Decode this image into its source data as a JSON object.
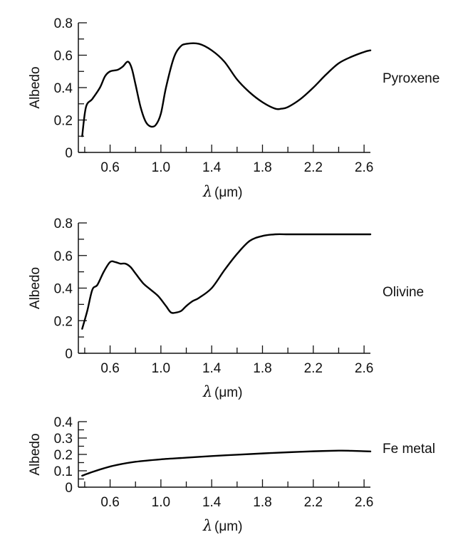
{
  "chart_data": [
    {
      "type": "line",
      "ylabel": "Albedo",
      "xlabel_symbol": "λ",
      "xlabel_unit": "(μm)",
      "series_label": "Pyroxene",
      "xlim": [
        0.35,
        2.65
      ],
      "ylim": [
        0,
        0.8
      ],
      "yticks": [
        "0",
        "0.2",
        "0.4",
        "0.6",
        "0.8"
      ],
      "xticks": [
        "0.6",
        "1.0",
        "1.4",
        "1.8",
        "2.2",
        "2.6"
      ],
      "series": [
        {
          "x": [
            0.38,
            0.41,
            0.46,
            0.52,
            0.56,
            0.6,
            0.66,
            0.7,
            0.74,
            0.77,
            0.8,
            0.84,
            0.88,
            0.92,
            0.96,
            1.0,
            1.04,
            1.1,
            1.15,
            1.2,
            1.3,
            1.4,
            1.5,
            1.6,
            1.7,
            1.8,
            1.9,
            1.95,
            2.0,
            2.1,
            2.2,
            2.3,
            2.4,
            2.5,
            2.6,
            2.65
          ],
          "y": [
            0.1,
            0.28,
            0.33,
            0.4,
            0.47,
            0.5,
            0.51,
            0.53,
            0.56,
            0.52,
            0.42,
            0.28,
            0.19,
            0.16,
            0.17,
            0.24,
            0.4,
            0.58,
            0.65,
            0.67,
            0.67,
            0.63,
            0.56,
            0.45,
            0.37,
            0.31,
            0.27,
            0.27,
            0.28,
            0.33,
            0.4,
            0.48,
            0.55,
            0.59,
            0.62,
            0.63
          ]
        }
      ]
    },
    {
      "type": "line",
      "ylabel": "Albedo",
      "xlabel_symbol": "λ",
      "xlabel_unit": "(μm)",
      "series_label": "Olivine",
      "xlim": [
        0.35,
        2.65
      ],
      "ylim": [
        0,
        0.8
      ],
      "yticks": [
        "0",
        "0.2",
        "0.4",
        "0.6",
        "0.8"
      ],
      "xticks": [
        "0.6",
        "1.0",
        "1.4",
        "1.8",
        "2.2",
        "2.6"
      ],
      "series": [
        {
          "x": [
            0.38,
            0.42,
            0.46,
            0.5,
            0.55,
            0.6,
            0.64,
            0.68,
            0.72,
            0.76,
            0.8,
            0.86,
            0.92,
            0.98,
            1.04,
            1.08,
            1.12,
            1.16,
            1.2,
            1.25,
            1.3,
            1.4,
            1.5,
            1.6,
            1.7,
            1.8,
            1.9,
            2.0,
            2.1,
            2.2,
            2.4,
            2.65
          ],
          "y": [
            0.15,
            0.26,
            0.39,
            0.42,
            0.5,
            0.56,
            0.56,
            0.55,
            0.55,
            0.53,
            0.49,
            0.43,
            0.39,
            0.35,
            0.29,
            0.25,
            0.25,
            0.26,
            0.29,
            0.32,
            0.34,
            0.4,
            0.51,
            0.61,
            0.69,
            0.72,
            0.73,
            0.73,
            0.73,
            0.73,
            0.73,
            0.73
          ]
        }
      ]
    },
    {
      "type": "line",
      "ylabel": "Albedo",
      "xlabel_symbol": "λ",
      "xlabel_unit": "(μm)",
      "series_label": "Fe metal",
      "xlim": [
        0.35,
        2.65
      ],
      "ylim": [
        0,
        0.4
      ],
      "yticks": [
        "0",
        "0.1",
        "0.2",
        "0.3",
        "0.4"
      ],
      "xticks": [
        "0.6",
        "1.0",
        "1.4",
        "1.8",
        "2.2",
        "2.6"
      ],
      "series": [
        {
          "x": [
            0.38,
            0.45,
            0.55,
            0.65,
            0.8,
            1.0,
            1.2,
            1.4,
            1.6,
            1.8,
            2.0,
            2.2,
            2.4,
            2.5,
            2.65
          ],
          "y": [
            0.07,
            0.09,
            0.115,
            0.135,
            0.155,
            0.17,
            0.18,
            0.19,
            0.198,
            0.206,
            0.213,
            0.219,
            0.223,
            0.222,
            0.218
          ]
        }
      ]
    }
  ]
}
